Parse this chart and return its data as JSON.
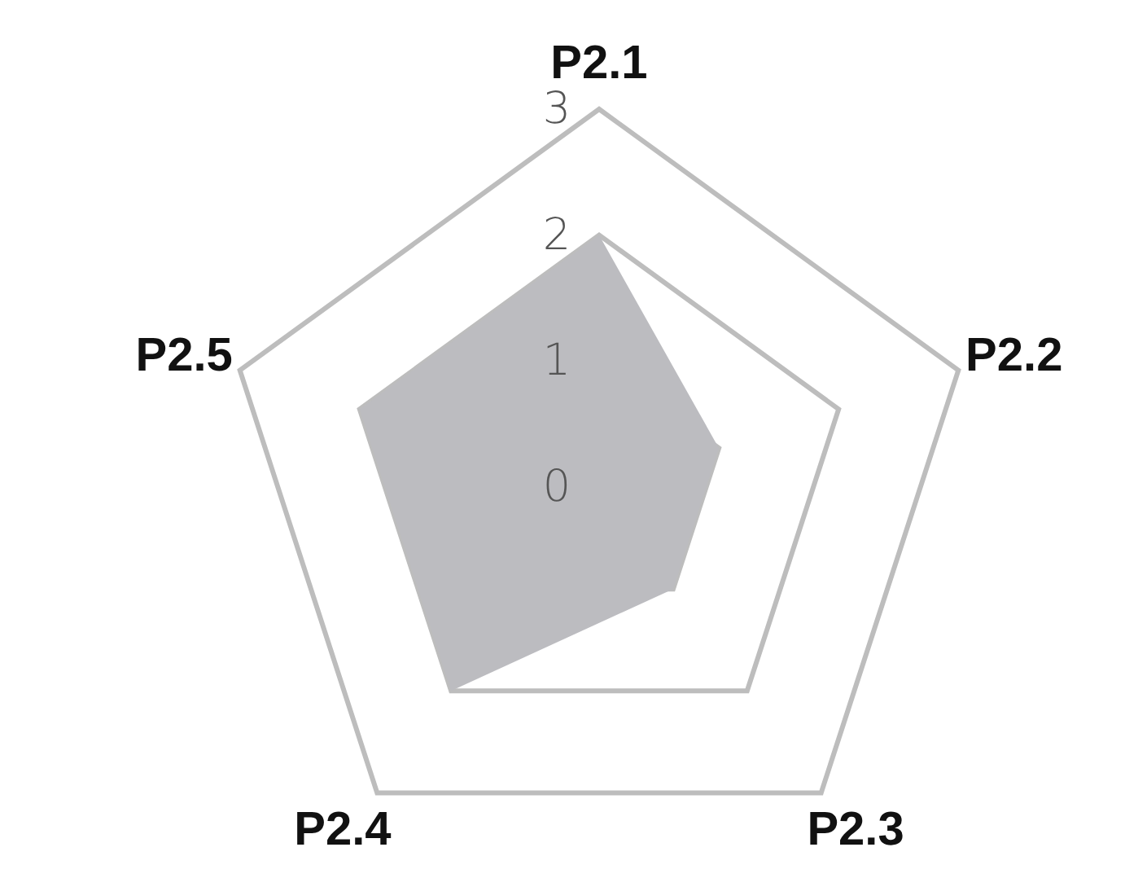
{
  "chart_data": {
    "type": "radar",
    "categories": [
      "P2.1",
      "P2.2",
      "P2.3",
      "P2.4",
      "P2.5"
    ],
    "series": [
      {
        "color": "#bcbcc0",
        "values": [
          2,
          1,
          1,
          2,
          2
        ]
      }
    ],
    "ylim": [
      0,
      3
    ],
    "yticks": [
      0,
      1,
      2,
      3
    ],
    "grid": true
  }
}
